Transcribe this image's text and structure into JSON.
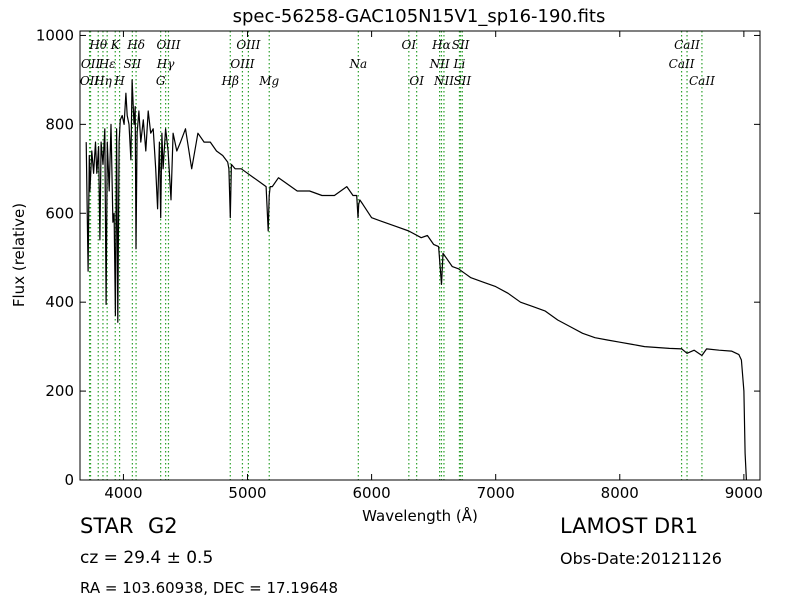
{
  "header": {
    "title": "spec-56258-GAC105N15V1_sp16-190.fits"
  },
  "info": {
    "object_class": "STAR",
    "subclass": "G2",
    "survey": "LAMOST DR1",
    "redshift": "cz = 29.4 ± 0.5",
    "obs_date": "Obs-Date:20121126",
    "coordinates": "RA = 103.60938, DEC = 17.19648"
  },
  "chart_data": {
    "type": "line",
    "title": "spec-56258-GAC105N15V1_sp16-190.fits",
    "xlabel": "Wavelength (Å)",
    "ylabel": "Flux (relative)",
    "xlim": [
      3650,
      9130
    ],
    "ylim": [
      0,
      1010
    ],
    "xticks": [
      4000,
      5000,
      6000,
      7000,
      8000,
      9000
    ],
    "yticks": [
      0,
      200,
      400,
      600,
      800,
      1000
    ],
    "grid": false,
    "series": [
      {
        "color": "#000000",
        "x": [
          3700,
          3715,
          3725,
          3730,
          3745,
          3760,
          3775,
          3785,
          3800,
          3810,
          3820,
          3835,
          3850,
          3860,
          3870,
          3885,
          3900,
          3915,
          3925,
          3935,
          3945,
          3955,
          3965,
          3975,
          3990,
          4005,
          4020,
          4030,
          4045,
          4060,
          4070,
          4085,
          4095,
          4101,
          4110,
          4125,
          4140,
          4160,
          4180,
          4200,
          4220,
          4240,
          4260,
          4275,
          4290,
          4300,
          4310,
          4320,
          4340,
          4360,
          4383,
          4400,
          4430,
          4460,
          4500,
          4550,
          4600,
          4650,
          4700,
          4750,
          4800,
          4840,
          4850,
          4861,
          4870,
          4900,
          4950,
          5000,
          5050,
          5100,
          5150,
          5167,
          5175,
          5183,
          5200,
          5250,
          5300,
          5400,
          5500,
          5600,
          5700,
          5800,
          5850,
          5880,
          5890,
          5896,
          5905,
          5930,
          6000,
          6100,
          6200,
          6300,
          6400,
          6450,
          6500,
          6540,
          6563,
          6575,
          6600,
          6650,
          6700,
          6750,
          6800,
          6900,
          7000,
          7100,
          7200,
          7300,
          7400,
          7500,
          7600,
          7700,
          7800,
          7900,
          8000,
          8100,
          8200,
          8300,
          8400,
          8500,
          8542,
          8600,
          8662,
          8700,
          8800,
          8900,
          8960,
          8980,
          9000,
          9010,
          9020
        ],
        "y": [
          760,
          470,
          730,
          650,
          740,
          690,
          760,
          690,
          750,
          540,
          760,
          710,
          790,
          395,
          760,
          650,
          800,
          580,
          600,
          370,
          790,
          355,
          760,
          810,
          820,
          800,
          870,
          820,
          800,
          720,
          900,
          800,
          840,
          520,
          780,
          830,
          760,
          810,
          740,
          830,
          780,
          790,
          700,
          610,
          760,
          590,
          780,
          700,
          790,
          740,
          630,
          780,
          740,
          760,
          790,
          700,
          780,
          760,
          760,
          740,
          730,
          715,
          700,
          590,
          710,
          700,
          700,
          690,
          680,
          670,
          660,
          560,
          640,
          660,
          660,
          680,
          670,
          650,
          650,
          640,
          640,
          660,
          640,
          640,
          590,
          620,
          630,
          620,
          590,
          580,
          570,
          560,
          545,
          550,
          530,
          525,
          440,
          510,
          500,
          480,
          475,
          465,
          455,
          445,
          435,
          420,
          400,
          390,
          380,
          360,
          345,
          330,
          320,
          315,
          310,
          305,
          300,
          298,
          296,
          295,
          285,
          292,
          280,
          295,
          292,
          290,
          282,
          270,
          200,
          60,
          0
        ]
      }
    ],
    "line_color": "#2ca02c",
    "spectral_lines": [
      {
        "wave": 3727,
        "label": "OII",
        "row": 2
      },
      {
        "wave": 3735,
        "label": "OII",
        "row": 1
      },
      {
        "wave": 3797,
        "label": "Hθ",
        "row": 0
      },
      {
        "wave": 3835,
        "label": "Hη",
        "row": 2
      },
      {
        "wave": 3869,
        "label": "Hε",
        "row": 1
      },
      {
        "wave": 3934,
        "label": "K",
        "row": 0
      },
      {
        "wave": 3969,
        "label": "H",
        "row": 2
      },
      {
        "wave": 4072,
        "label": "SII",
        "row": 1
      },
      {
        "wave": 4102,
        "label": "Hδ",
        "row": 0
      },
      {
        "wave": 4300,
        "label": "G",
        "row": 2
      },
      {
        "wave": 4340,
        "label": "Hγ",
        "row": 1
      },
      {
        "wave": 4363,
        "label": "OIII",
        "row": 0
      },
      {
        "wave": 4861,
        "label": "Hβ",
        "row": 2
      },
      {
        "wave": 4959,
        "label": "OIII",
        "row": 1
      },
      {
        "wave": 5007,
        "label": "OIII",
        "row": 0
      },
      {
        "wave": 5175,
        "label": "Mg",
        "row": 2
      },
      {
        "wave": 5893,
        "label": "Na",
        "row": 1
      },
      {
        "wave": 6300,
        "label": "OI",
        "row": 0
      },
      {
        "wave": 6363,
        "label": "OI",
        "row": 2
      },
      {
        "wave": 6548,
        "label": "NII",
        "row": 1
      },
      {
        "wave": 6563,
        "label": "Hα",
        "row": 0
      },
      {
        "wave": 6583,
        "label": "NII",
        "row": 2
      },
      {
        "wave": 6708,
        "label": "Li",
        "row": 1
      },
      {
        "wave": 6717,
        "label": "SII",
        "row": 0
      },
      {
        "wave": 6731,
        "label": "SII",
        "row": 2
      },
      {
        "wave": 8498,
        "label": "CaII",
        "row": 1
      },
      {
        "wave": 8542,
        "label": "CaII",
        "row": 0
      },
      {
        "wave": 8662,
        "label": "CaII",
        "row": 2
      }
    ]
  }
}
